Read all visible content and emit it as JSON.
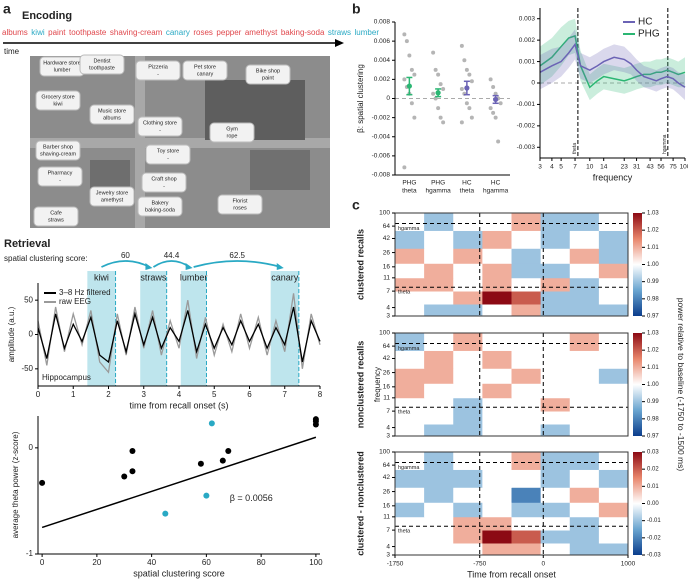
{
  "panel_labels": [
    "a",
    "b",
    "c"
  ],
  "encoding": {
    "title": "Encoding",
    "time_label": "time",
    "words": [
      {
        "text": "albums",
        "color": "#e0474c"
      },
      {
        "text": "kiwi",
        "color": "#29a9c4"
      },
      {
        "text": "paint",
        "color": "#e0474c"
      },
      {
        "text": "toothpaste",
        "color": "#e0474c"
      },
      {
        "text": "shaving-cream",
        "color": "#e0474c"
      },
      {
        "text": "canary",
        "color": "#29a9c4"
      },
      {
        "text": "roses",
        "color": "#e0474c"
      },
      {
        "text": "pepper",
        "color": "#e0474c"
      },
      {
        "text": "amethyst",
        "color": "#e0474c"
      },
      {
        "text": "baking-soda",
        "color": "#e0474c"
      },
      {
        "text": "straws",
        "color": "#29a9c4"
      },
      {
        "text": "lumber",
        "color": "#29a9c4"
      }
    ],
    "stores": [
      {
        "name": "Hardware store",
        "item": "lumber",
        "color": "#29a9c4"
      },
      {
        "name": "Dentist",
        "item": "toothpaste",
        "color": "#e0474c"
      },
      {
        "name": "Pizzeria",
        "item": "-",
        "color": "#333333"
      },
      {
        "name": "Pet store",
        "item": "canary",
        "color": "#29a9c4"
      },
      {
        "name": "Bike shop",
        "item": "paint",
        "color": "#e0474c"
      },
      {
        "name": "Grocery store",
        "item": "kiwi",
        "color": "#29a9c4"
      },
      {
        "name": "Music store",
        "item": "albums",
        "color": "#e0474c"
      },
      {
        "name": "Clothing store",
        "item": "-",
        "color": "#333333"
      },
      {
        "name": "Toy store",
        "item": "-",
        "color": "#333333"
      },
      {
        "name": "Gym",
        "item": "rope",
        "color": "#e0474c"
      },
      {
        "name": "Barber shop",
        "item": "shaving-cream",
        "color": "#e0474c"
      },
      {
        "name": "Pharmacy",
        "item": "-",
        "color": "#333333"
      },
      {
        "name": "Craft shop",
        "item": "-",
        "color": "#333333"
      },
      {
        "name": "Jewelry store",
        "item": "amethyst",
        "color": "#e0474c"
      },
      {
        "name": "Bakery",
        "item": "baking-soda",
        "color": "#e0474c"
      },
      {
        "name": "Florist",
        "item": "roses",
        "color": "#e0474c"
      },
      {
        "name": "Cafe",
        "item": "straws",
        "color": "#29a9c4"
      }
    ]
  },
  "retrieval": {
    "title": "Retrieval",
    "score_label": "spatial clustering score:"
  },
  "chart_data": [
    {
      "type": "line",
      "x": [
        0,
        0.25,
        0.5,
        0.75,
        1,
        1.25,
        1.5,
        1.75,
        2,
        2.25,
        2.5,
        2.75,
        3,
        3.25,
        3.5,
        3.75,
        4,
        4.25,
        4.5,
        4.75,
        5,
        5.25,
        5.5,
        5.75,
        6,
        6.25,
        6.5,
        6.75,
        7,
        7.25,
        7.5,
        7.75,
        8
      ],
      "xlim": [
        0,
        8
      ],
      "xticks": [
        0,
        1,
        2,
        3,
        4,
        5,
        6,
        7,
        8
      ],
      "ylim": [
        -75,
        75
      ],
      "yticks": [
        -50,
        0,
        50
      ],
      "xlabel": "time from recall onset (s)",
      "ylabel": "amplitude (a.u.)",
      "annotation": "Hippocampus",
      "legend": "upper left",
      "series": [
        {
          "name": "3–8 Hz filtered",
          "color": "#000000",
          "values": [
            10,
            -35,
            30,
            -20,
            15,
            -10,
            25,
            -30,
            -40,
            20,
            -25,
            30,
            -15,
            25,
            -20,
            10,
            -10,
            35,
            -25,
            15,
            -20,
            10,
            -15,
            20,
            -10,
            15,
            -20,
            10,
            -15,
            40,
            -40,
            20,
            -10
          ]
        },
        {
          "name": "raw EEG",
          "color": "#9a9a9a",
          "values": [
            20,
            -45,
            40,
            -25,
            30,
            -15,
            35,
            -40,
            -55,
            30,
            -30,
            40,
            -20,
            35,
            -30,
            20,
            -20,
            50,
            -35,
            25,
            -30,
            15,
            -25,
            30,
            -20,
            25,
            -30,
            20,
            -25,
            60,
            -50,
            30,
            -15
          ]
        }
      ],
      "recalls": [
        {
          "label": "kiwi",
          "start": 1.4,
          "end": 2.2
        },
        {
          "label": "straws",
          "start": 2.9,
          "end": 3.65
        },
        {
          "label": "lumber",
          "start": 4.05,
          "end": 4.78
        },
        {
          "label": "canary",
          "start": 6.6,
          "end": 7.4
        }
      ],
      "recall_color": "#29a9c4",
      "scores": [
        60,
        44.4,
        62.5
      ]
    },
    {
      "type": "scatter",
      "xlim": [
        -1.5,
        101.5
      ],
      "xticks": [
        0,
        20,
        40,
        60,
        80,
        100
      ],
      "ylim": [
        -1,
        0.3
      ],
      "yticks": [
        -1,
        0
      ],
      "xlabel": "spatial clustering score",
      "ylabel": "average theta power (z-score)",
      "series": [
        {
          "color": "#000000",
          "x": [
            0,
            30,
            33,
            33,
            58,
            66,
            68,
            100,
            100,
            100
          ],
          "values": [
            -0.33,
            -0.27,
            -0.22,
            -0.03,
            -0.15,
            -0.12,
            -0.03,
            0.27,
            0.25,
            0.22
          ]
        },
        {
          "color": "#29a9c4",
          "x": [
            45,
            60,
            62
          ],
          "values": [
            -0.62,
            -0.45,
            0.23
          ]
        }
      ],
      "fit": {
        "x": [
          0,
          100
        ],
        "values": [
          -0.75,
          0.1
        ]
      },
      "annotation": "β = 0.0056"
    },
    {
      "type": "dot",
      "categories": [
        [
          "PHG",
          "theta"
        ],
        [
          "PHG",
          "hgamma"
        ],
        [
          "HC",
          "theta"
        ],
        [
          "HC",
          "hgamma"
        ]
      ],
      "values": [
        0.0013,
        0.0006,
        0.0011,
        -0.0001
      ],
      "errors": [
        0.0009,
        0.0004,
        0.0007,
        0.0004
      ],
      "colors": [
        "#2bb673",
        "#2bb673",
        "#6b63b5",
        "#6b63b5"
      ],
      "point_color": "#b5b5b5",
      "points": [
        [
          0.0067,
          0.006,
          0.0045,
          0.003,
          0.0025,
          0.002,
          0.0012,
          0.0005,
          -0.0005,
          -0.002,
          -0.0072
        ],
        [
          0.0048,
          0.003,
          0.0025,
          0.0015,
          0.001,
          0.0005,
          0,
          -0.001,
          -0.002,
          -0.0025
        ],
        [
          0.0055,
          0.004,
          0.003,
          0.0025,
          0.0018,
          0.001,
          0.0005,
          -0.0005,
          -0.001,
          -0.002,
          -0.0025
        ],
        [
          0.002,
          0.0012,
          0.0005,
          0,
          -0.0005,
          -0.001,
          -0.0015,
          -0.002,
          -0.0045
        ]
      ],
      "ylim": [
        -0.008,
        0.008
      ],
      "yticks": [
        -0.008,
        -0.006,
        -0.004,
        -0.002,
        0,
        0.002,
        0.004,
        0.006,
        0.008
      ],
      "reference_line": 0,
      "ylabel": "β: spatial clustering"
    },
    {
      "type": "line",
      "xscale": "log",
      "x": [
        3,
        4,
        5,
        6,
        7,
        8,
        10,
        12,
        14,
        18,
        23,
        27,
        31,
        37,
        43,
        50,
        56,
        65,
        75,
        85,
        100
      ],
      "xlim": [
        3,
        100
      ],
      "xticks": [
        3,
        4,
        5,
        7,
        10,
        14,
        23,
        31,
        43,
        56,
        75,
        100
      ],
      "ylim": [
        -0.0035,
        0.0035
      ],
      "yticks": [
        -0.003,
        -0.002,
        -0.001,
        0,
        0.001,
        0.002,
        0.003
      ],
      "xlabel": "frequency",
      "legend": "upper right",
      "reference_line": 0,
      "series": [
        {
          "name": "HC",
          "color": "#6b63b5",
          "values": [
            0.0005,
            0.0008,
            0.001,
            0.0014,
            0.0018,
            0.0008,
            0.0006,
            0.0008,
            0.001,
            0.0012,
            0.0011,
            0.0009,
            0.0006,
            0.0003,
            0.0002,
            0.0001,
            0.0002,
            0.0003,
            0.0002,
            0,
            -0.0002
          ],
          "errors": [
            0.0008,
            0.0008,
            0.0007,
            0.0007,
            0.0007,
            0.0006,
            0.0006,
            0.0006,
            0.0006,
            0.0006,
            0.0006,
            0.0005,
            0.0005,
            0.0005,
            0.0005,
            0.0005,
            0.0005,
            0.0005,
            0.0005,
            0.0005,
            0.0006
          ]
        },
        {
          "name": "PHG",
          "color": "#2bb673",
          "values": [
            0.0008,
            0.0012,
            0.0017,
            0.0021,
            0.0022,
            0.0008,
            -0.0002,
            0.0001,
            0.0003,
            0.0002,
            0.0001,
            0.0002,
            0.0003,
            0.0004,
            0.0004,
            0.0005,
            0.0005,
            0.0006,
            0.0005,
            0.0004,
            0.0005
          ],
          "errors": [
            0.0009,
            0.0009,
            0.0009,
            0.0008,
            0.0008,
            0.0007,
            0.0006,
            0.0006,
            0.0006,
            0.0006,
            0.0006,
            0.0006,
            0.0006,
            0.0006,
            0.0006,
            0.0006,
            0.0006,
            0.0006,
            0.0006,
            0.0006,
            0.0007
          ]
        }
      ],
      "vlines": [
        {
          "value": 7.5,
          "label": "theta"
        },
        {
          "value": 66,
          "label": "hgamma"
        }
      ]
    },
    {
      "type": "heatmap",
      "title": "clustered recalls",
      "xlim": [
        -1750,
        1000
      ],
      "ylim": [
        3,
        100
      ],
      "yscale": "log",
      "yticks": [
        3,
        4,
        7,
        11,
        16,
        26,
        42,
        64,
        100
      ],
      "xbins": [
        -1750,
        -1406.25,
        -1062.5,
        -718.75,
        -375,
        -31.25,
        312.5,
        656.25,
        1000
      ],
      "ybins": [
        3,
        4.5,
        7,
        11,
        18,
        30,
        55,
        100
      ],
      "values": [
        [
          1.0,
          0.99,
          0.99,
          1.0,
          1.01,
          0.99,
          0.99,
          0.99
        ],
        [
          1.0,
          1.0,
          1.01,
          1.03,
          1.02,
          0.99,
          0.99,
          1.0
        ],
        [
          1.01,
          1.01,
          1.0,
          1.01,
          1.0,
          1.01,
          0.99,
          1.0
        ],
        [
          1.0,
          1.01,
          1.0,
          1.01,
          0.99,
          0.99,
          1.0,
          1.01
        ],
        [
          1.01,
          1.0,
          1.01,
          1.0,
          0.99,
          1.0,
          1.01,
          0.99
        ],
        [
          0.99,
          1.0,
          0.99,
          1.01,
          1.0,
          0.99,
          1.0,
          0.99
        ],
        [
          1.0,
          0.99,
          1.0,
          1.0,
          1.01,
          0.99,
          0.99,
          1.0
        ]
      ],
      "vlim": [
        0.97,
        1.03
      ],
      "colorbar_ticks": [
        0.97,
        0.98,
        0.99,
        {
          "value": 1,
          "label": "1.00"
        },
        1.01,
        1.02,
        1.03
      ],
      "vlines": [
        -750,
        0
      ],
      "hlines": [
        {
          "value": 8,
          "label": "theta"
        },
        {
          "value": 70,
          "label": "hgamma"
        }
      ]
    },
    {
      "type": "heatmap",
      "title": "nonclustered recalls",
      "ylabel": "frequency",
      "zlabel": "power relative to baseline (-1750 to -1500 ms)",
      "xlim": [
        -1750,
        1000
      ],
      "ylim": [
        3,
        100
      ],
      "yscale": "log",
      "yticks": [
        3,
        4,
        7,
        11,
        16,
        26,
        42,
        64,
        100
      ],
      "xbins": [
        -1750,
        -1406.25,
        -1062.5,
        -718.75,
        -375,
        -31.25,
        312.5,
        656.25,
        1000
      ],
      "ybins": [
        3,
        4.5,
        7,
        11,
        18,
        30,
        55,
        100
      ],
      "values": [
        [
          1.0,
          0.99,
          0.99,
          1.0,
          1.0,
          0.99,
          1.0,
          1.0
        ],
        [
          1.0,
          1.0,
          0.99,
          1.0,
          1.0,
          1.0,
          1.0,
          1.0
        ],
        [
          1.0,
          1.0,
          0.99,
          1.0,
          1.0,
          1.01,
          1.0,
          1.0
        ],
        [
          1.01,
          1.0,
          1.0,
          1.01,
          1.0,
          1.0,
          1.0,
          1.0
        ],
        [
          1.01,
          1.01,
          1.0,
          1.0,
          1.01,
          1.0,
          1.0,
          0.99
        ],
        [
          1.0,
          1.01,
          1.0,
          1.01,
          1.0,
          1.0,
          1.0,
          1.0
        ],
        [
          0.99,
          1.0,
          1.01,
          1.0,
          1.0,
          1.0,
          1.01,
          1.0
        ]
      ],
      "vlim": [
        0.97,
        1.03
      ],
      "colorbar_ticks": [
        0.97,
        0.98,
        0.99,
        {
          "value": 1,
          "label": "1.00"
        },
        1.01,
        1.02,
        1.03
      ],
      "vlines": [
        -750,
        0
      ],
      "hlines": [
        {
          "value": 8,
          "label": "theta"
        },
        {
          "value": 70,
          "label": "hgamma"
        }
      ]
    },
    {
      "type": "heatmap",
      "title": "clustered - nonclustered",
      "xlabel": "Time from recall onset",
      "xlim": [
        -1750,
        1000
      ],
      "xticks": [
        -1750,
        -750,
        0,
        1000
      ],
      "ylim": [
        3,
        100
      ],
      "yscale": "log",
      "yticks": [
        3,
        4,
        7,
        11,
        16,
        26,
        42,
        64,
        100
      ],
      "xbins": [
        -1750,
        -1406.25,
        -1062.5,
        -718.75,
        -375,
        -31.25,
        312.5,
        656.25,
        1000
      ],
      "ybins": [
        3,
        4.5,
        7,
        11,
        18,
        30,
        55,
        100
      ],
      "values": [
        [
          0,
          0,
          0,
          0.01,
          0.01,
          0,
          -0.01,
          -0.01
        ],
        [
          0,
          0,
          0.01,
          0.03,
          0.02,
          -0.01,
          -0.01,
          0
        ],
        [
          0,
          0,
          0.01,
          0.01,
          0,
          0,
          -0.01,
          0
        ],
        [
          -0.01,
          0,
          -0.01,
          0,
          -0.01,
          -0.01,
          0,
          0.01
        ],
        [
          0,
          -0.01,
          0,
          0,
          -0.02,
          0,
          0.01,
          0
        ],
        [
          -0.01,
          -0.01,
          -0.01,
          0,
          0,
          -0.01,
          0,
          -0.01
        ],
        [
          0,
          -0.01,
          0,
          0,
          0.01,
          -0.01,
          -0.01,
          0
        ]
      ],
      "vlim": [
        -0.03,
        0.03
      ],
      "colorbar_ticks": [
        -0.03,
        -0.02,
        -0.01,
        {
          "value": 0,
          "label": "0.00"
        },
        0.01,
        0.02,
        0.03
      ],
      "vlines": [
        -750,
        0
      ],
      "hlines": [
        {
          "value": 8,
          "label": "theta"
        },
        {
          "value": 70,
          "label": "hgamma"
        }
      ]
    }
  ]
}
